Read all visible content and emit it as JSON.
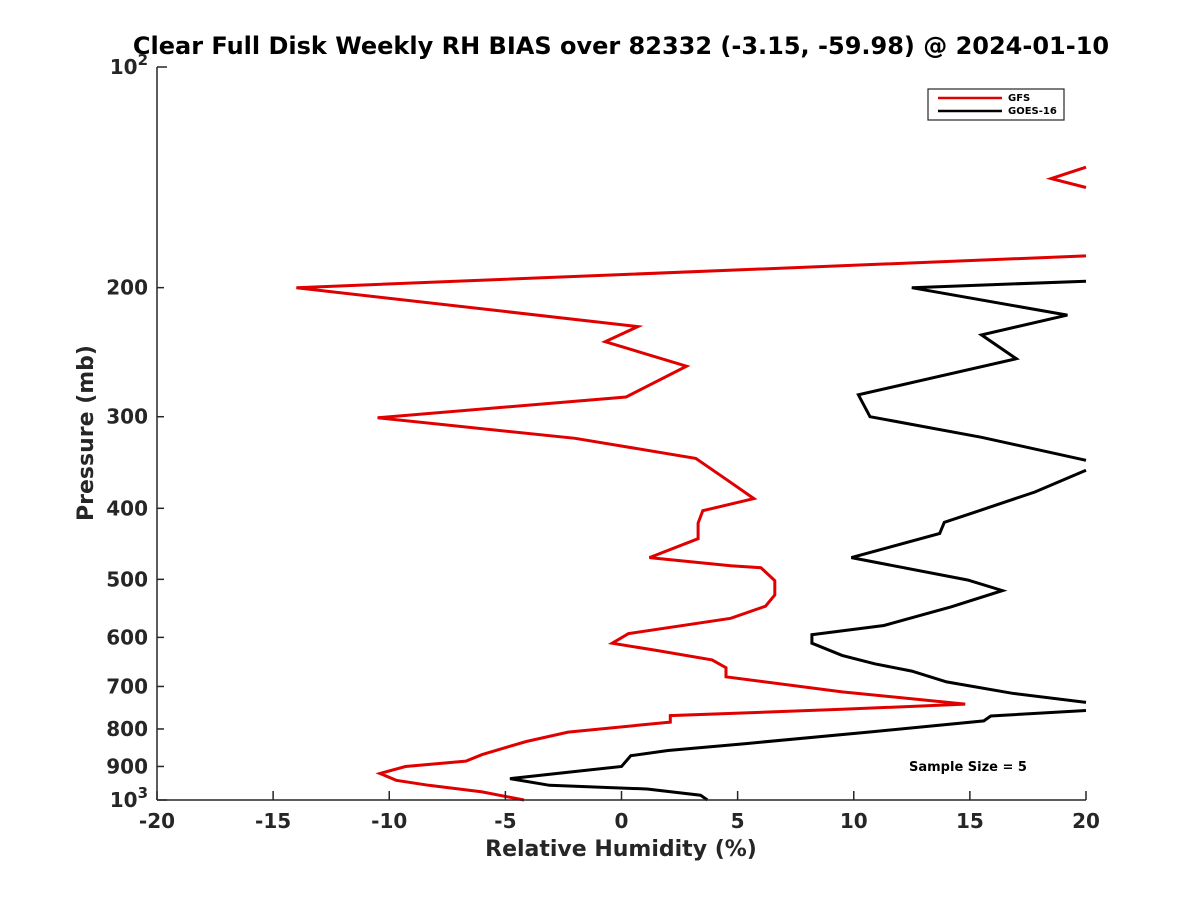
{
  "chart_data": {
    "type": "line",
    "title": "Clear Full Disk Weekly RH BIAS over 82332 (-3.15, -59.98) @ 2024-01-10",
    "xlabel": "Relative Humidity (%)",
    "ylabel": "Pressure (mb)",
    "xlim": [
      -20,
      20
    ],
    "ylim": [
      100,
      1000
    ],
    "y_scale": "log",
    "y_reversed": true,
    "grid": false,
    "legend_position": "top-right",
    "x_ticks": [
      "-20",
      "-15",
      "-10",
      "-5",
      "0",
      "5",
      "10",
      "15",
      "20"
    ],
    "x_tick_values": [
      -20,
      -15,
      -10,
      -5,
      0,
      5,
      10,
      15,
      20
    ],
    "y_ticks": [
      {
        "value": 200,
        "label": "200"
      },
      {
        "value": 300,
        "label": "300"
      },
      {
        "value": 400,
        "label": "400"
      },
      {
        "value": 500,
        "label": "500"
      },
      {
        "value": 600,
        "label": "600"
      },
      {
        "value": 700,
        "label": "700"
      },
      {
        "value": 800,
        "label": "800"
      },
      {
        "value": 900,
        "label": "900"
      }
    ],
    "y_tick_top": {
      "value": 100,
      "base": "10",
      "exp": "2"
    },
    "y_tick_bottom": {
      "value": 1000,
      "base": "10",
      "exp": "3"
    },
    "annotation": "Sample Size = 5",
    "series": [
      {
        "name": "GFS",
        "color": "#e00000",
        "points": [
          [
            20,
            137
          ],
          [
            18.5,
            142
          ],
          [
            20,
            146
          ],
          [
            null,
            null
          ],
          [
            20,
            181
          ],
          [
            -14,
            200
          ],
          [
            0.7,
            226
          ],
          [
            -0.7,
            237
          ],
          [
            2.8,
            256
          ],
          [
            0.2,
            282
          ],
          [
            -10.5,
            301
          ],
          [
            -2,
            321
          ],
          [
            3.2,
            342
          ],
          [
            4.5,
            365
          ],
          [
            5.7,
            388
          ],
          [
            3.5,
            403
          ],
          [
            3.3,
            419
          ],
          [
            3.3,
            440
          ],
          [
            1.2,
            467
          ],
          [
            4.7,
            479
          ],
          [
            6,
            482
          ],
          [
            6.6,
            502
          ],
          [
            6.6,
            525
          ],
          [
            6.2,
            544
          ],
          [
            4.7,
            565
          ],
          [
            0.3,
            593
          ],
          [
            -0.4,
            611
          ],
          [
            1.5,
            625
          ],
          [
            3.9,
            644
          ],
          [
            4.5,
            660
          ],
          [
            4.5,
            679
          ],
          [
            9.5,
            712
          ],
          [
            14.8,
            740
          ],
          [
            9.5,
            752
          ],
          [
            2.1,
            767
          ],
          [
            2.1,
            783
          ],
          [
            -2.3,
            808
          ],
          [
            -4.1,
            832
          ],
          [
            -5.1,
            850
          ],
          [
            -6,
            867
          ],
          [
            -6.7,
            885
          ],
          [
            -9.3,
            900
          ],
          [
            -10.4,
            920
          ],
          [
            -9.7,
            940
          ],
          [
            -8.3,
            955
          ],
          [
            -6,
            975
          ],
          [
            -4.2,
            1000
          ]
        ]
      },
      {
        "name": "GOES-16",
        "color": "#000000",
        "points": [
          [
            20,
            196
          ],
          [
            12.5,
            200
          ],
          [
            19.2,
            218
          ],
          [
            15.5,
            232
          ],
          [
            17,
            250
          ],
          [
            10.2,
            280
          ],
          [
            10.7,
            300
          ],
          [
            15.5,
            320
          ],
          [
            20,
            344
          ],
          [
            null,
            null
          ],
          [
            20,
            355
          ],
          [
            17.8,
            380
          ],
          [
            15.2,
            405
          ],
          [
            13.9,
            418
          ],
          [
            13.7,
            433
          ],
          [
            9.9,
            467
          ],
          [
            14.9,
            501
          ],
          [
            16.4,
            518
          ],
          [
            14.2,
            545
          ],
          [
            11.3,
            578
          ],
          [
            8.2,
            595
          ],
          [
            8.2,
            611
          ],
          [
            9.5,
            635
          ],
          [
            10.9,
            652
          ],
          [
            12.5,
            667
          ],
          [
            14,
            690
          ],
          [
            16.8,
            715
          ],
          [
            20,
            736
          ],
          [
            null,
            null
          ],
          [
            20,
            755
          ],
          [
            15.9,
            768
          ],
          [
            15.6,
            780
          ],
          [
            10.8,
            807
          ],
          [
            5.3,
            838
          ],
          [
            2,
            856
          ],
          [
            0.4,
            870
          ],
          [
            0,
            900
          ],
          [
            -2.1,
            915
          ],
          [
            -4.8,
            935
          ],
          [
            -3.1,
            955
          ],
          [
            1.1,
            966
          ],
          [
            3.4,
            985
          ],
          [
            3.7,
            1000
          ]
        ]
      }
    ]
  }
}
